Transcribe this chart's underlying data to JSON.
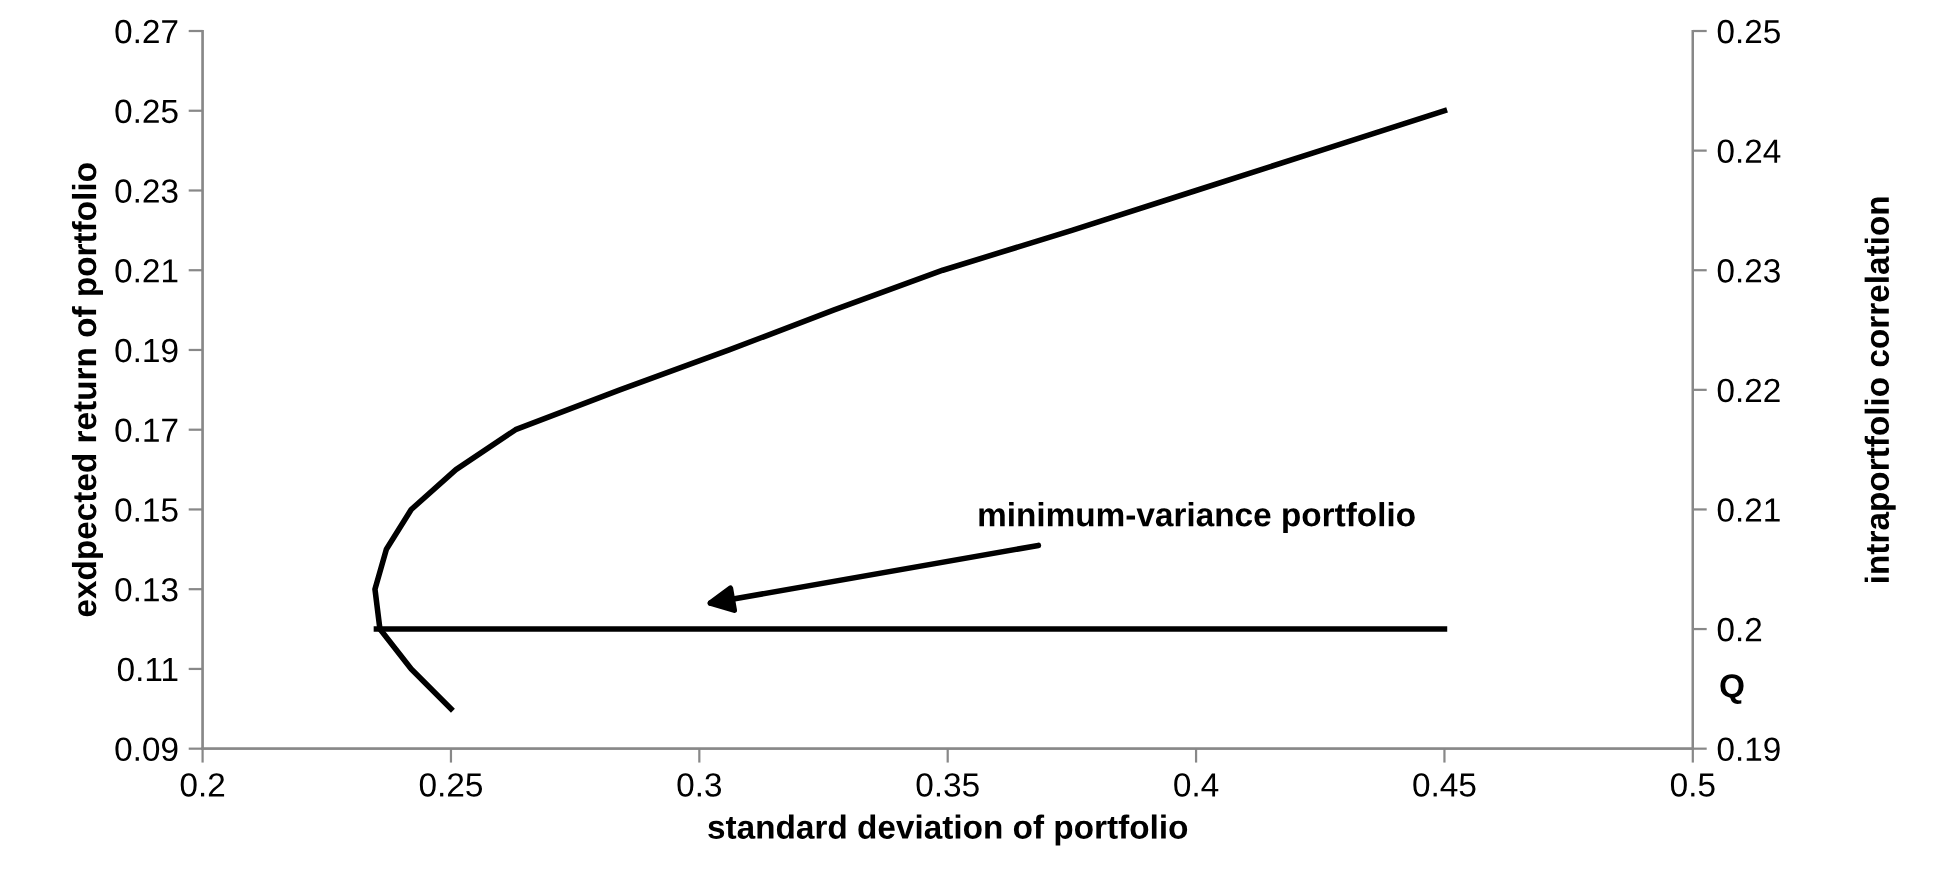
{
  "chart_data": {
    "type": "line",
    "xlabel": "standard deviation of portfolio",
    "ylabel": "exdpected return of portfolio",
    "y2label": "intraportfolio correlation",
    "series": [
      {
        "color": "#000000",
        "x": [
          0.25,
          0.242,
          0.2357,
          0.2347,
          0.237,
          0.242,
          0.251,
          0.263,
          0.284,
          0.306,
          0.327,
          0.349,
          0.375,
          0.4,
          0.425,
          0.45
        ],
        "values": [
          0.1,
          0.11,
          0.12,
          0.13,
          0.14,
          0.15,
          0.16,
          0.17,
          0.18,
          0.19,
          0.2,
          0.21,
          0.22,
          0.23,
          0.24,
          0.25
        ]
      },
      {
        "color": "#000000",
        "axis": "y2",
        "x": [
          0.235,
          0.45
        ],
        "values": [
          0.2,
          0.2
        ]
      }
    ],
    "xlim": [
      0.2,
      0.5
    ],
    "xticks": [
      0.2,
      0.25,
      0.3,
      0.35,
      0.4,
      0.45,
      0.5
    ],
    "ylim": [
      0.09,
      0.27
    ],
    "yticks": [
      0.09,
      0.11,
      0.13,
      0.15,
      0.17,
      0.19,
      0.21,
      0.23,
      0.25,
      0.27
    ],
    "y2lim": [
      0.19,
      0.25
    ],
    "y2ticks": [
      0.19,
      0.2,
      0.21,
      0.22,
      0.23,
      0.24,
      0.25
    ],
    "annotations": [
      "minimum-variance portfolio",
      "Q"
    ],
    "grid": false,
    "marker": "none",
    "line_style": "solid"
  }
}
